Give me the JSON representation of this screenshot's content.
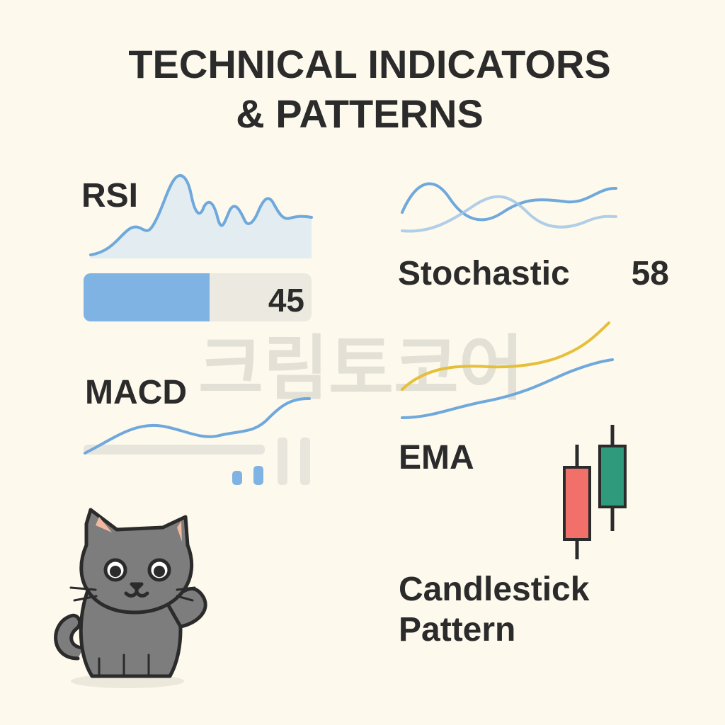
{
  "title": [
    "TECHNICAL INDICATORS",
    "& PATTERNS"
  ],
  "rsi": {
    "label": "RSI",
    "value": 45
  },
  "stochastic": {
    "label": "Stochastic",
    "value": 58
  },
  "macd": {
    "label": "MACD"
  },
  "ema": {
    "label": "EMA"
  },
  "candlestick": {
    "label": [
      "Candlestick",
      "Pattern"
    ]
  },
  "watermark": "크림토코어"
}
